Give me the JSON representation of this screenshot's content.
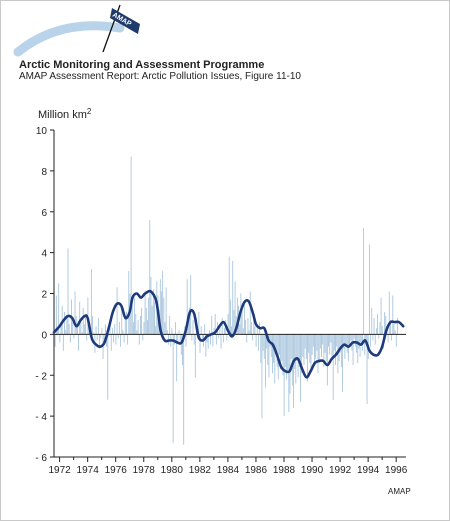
{
  "header": {
    "logo_text": "AMAP",
    "title": "Arctic Monitoring and Assessment Programme",
    "subtitle": "AMAP Assessment Report: Arctic Pollution Issues, Figure 11-10"
  },
  "colors": {
    "bars": "#a9c6dd",
    "smooth_line": "#1d3a7a",
    "axis": "#222222",
    "logo_arc": "#b9d3ea"
  },
  "chart_data": {
    "type": "bar",
    "title": "",
    "ylabel": "Million km²",
    "xlabel": "",
    "ylim": [
      -6,
      10
    ],
    "xlim": [
      1971.6,
      1996.7
    ],
    "yticks": [
      "10",
      "8",
      "6",
      "4",
      "2",
      "0",
      "- 2",
      "- 4",
      "- 6"
    ],
    "ytick_values": [
      10,
      8,
      6,
      4,
      2,
      0,
      -2,
      -4,
      -6
    ],
    "xticks": [
      "1972",
      "1974",
      "1976",
      "1978",
      "1980",
      "1982",
      "1984",
      "1986",
      "1988",
      "1990",
      "1992",
      "1994",
      "1996"
    ],
    "xtick_values": [
      1972,
      1974,
      1976,
      1978,
      1980,
      1982,
      1984,
      1986,
      1988,
      1990,
      1992,
      1994,
      1996
    ],
    "series": [
      {
        "kind": "monthly-anomaly-bars",
        "start_year": 1971.6,
        "step_years": 0.0833,
        "values": [
          0.8,
          -0.6,
          1.9,
          0.3,
          2.5,
          -0.4,
          0.6,
          1.4,
          -0.8,
          1.1,
          0.2,
          0.9,
          4.2,
          0.5,
          -0.4,
          1.7,
          0.6,
          -0.2,
          2.1,
          0.9,
          0.4,
          -0.8,
          1.6,
          0.6,
          0.1,
          1.3,
          0.5,
          0.9,
          -0.3,
          1.8,
          0.6,
          0.4,
          3.2,
          0.9,
          0.1,
          -0.9,
          0.4,
          -0.3,
          0.8,
          -0.7,
          -0.2,
          0.3,
          -1.2,
          -0.3,
          0.5,
          -0.6,
          -3.2,
          -0.1,
          0.4,
          -0.8,
          0.3,
          -0.4,
          0.5,
          -0.5,
          2.3,
          -0.2,
          0.6,
          -0.6,
          1.3,
          0.2,
          -0.4,
          0.8,
          1.1,
          -0.5,
          3.1,
          2.0,
          8.7,
          1.4,
          0.6,
          1.8,
          1.0,
          0.2,
          0.7,
          -0.5,
          0.9,
          1.3,
          -0.3,
          0.6,
          2.1,
          1.3,
          0.7,
          1.8,
          5.6,
          2.8,
          1.4,
          2.2,
          1.6,
          0.4,
          2.6,
          1.9,
          1.2,
          2.7,
          2.1,
          3.1,
          1.8,
          0.6,
          2.3,
          0.2,
          -0.5,
          0.9,
          -0.6,
          0.3,
          -5.3,
          -0.5,
          0.6,
          -2.3,
          -0.4,
          0.2,
          -0.5,
          -1.0,
          -1.5,
          -5.4,
          0.4,
          -0.6,
          2.7,
          0.6,
          1.3,
          2.9,
          -0.3,
          0.7,
          -0.5,
          -2.1,
          0.8,
          -0.2,
          1.1,
          -0.9,
          0.4,
          -0.3,
          -0.6,
          0.5,
          -1.1,
          -0.4,
          -0.7,
          0.2,
          -0.5,
          0.9,
          -0.6,
          0.3,
          1.0,
          -0.5,
          0.6,
          -0.2,
          0.5,
          -0.7,
          0.8,
          -0.4,
          0.3,
          0.7,
          -0.3,
          1.0,
          3.8,
          1.7,
          0.4,
          3.6,
          1.2,
          2.6,
          0.9,
          1.8,
          1.4,
          0.5,
          2.0,
          1.3,
          0.3,
          1.6,
          0.7,
          -0.4,
          0.8,
          0.2,
          2.1,
          0.6,
          -0.3,
          0.7,
          0.4,
          -0.6,
          0.3,
          -0.8,
          0.6,
          -1.4,
          -4.1,
          -0.8,
          -1.2,
          -2.6,
          -0.7,
          -1.5,
          -2.1,
          -0.6,
          -1.1,
          -1.9,
          -1.4,
          -2.4,
          -0.9,
          -1.6,
          -2.2,
          -1.0,
          -1.7,
          -1.3,
          -2.0,
          -4.0,
          -1.6,
          -2.2,
          -1.8,
          -3.8,
          -2.9,
          -1.2,
          -2.5,
          -3.6,
          -1.7,
          -2.4,
          -1.3,
          -2.1,
          -1.6,
          -3.3,
          -1.9,
          -1.1,
          -1.5,
          -0.7,
          -1.2,
          -2.3,
          -0.9,
          -1.4,
          -1.8,
          -1.0,
          -0.6,
          -1.5,
          -1.2,
          -0.8,
          -1.9,
          -1.4,
          -0.7,
          -1.1,
          -0.5,
          -1.6,
          -0.9,
          -1.3,
          -2.5,
          -0.6,
          -1.0,
          -0.4,
          -1.2,
          -3.2,
          -0.8,
          -1.5,
          -0.6,
          -1.9,
          -1.3,
          -0.9,
          -1.6,
          -2.8,
          -0.7,
          -1.2,
          -0.5,
          -0.9,
          -1.3,
          -0.6,
          -0.3,
          -0.8,
          -1.5,
          -0.2,
          -0.6,
          -0.9,
          -1.4,
          -0.7,
          -1.1,
          -0.4,
          -0.8,
          5.2,
          -1.0,
          -0.5,
          -3.4,
          -1.2,
          4.4,
          -0.6,
          1.3,
          -0.3,
          0.8,
          -0.5,
          0.3,
          1.0,
          -0.2,
          0.6,
          1.8,
          0.4,
          -0.7,
          1.1,
          0.9,
          0.3,
          -0.4,
          2.1,
          0.7,
          -0.3,
          1.9,
          0.5,
          0.2,
          -0.6,
          0.8
        ]
      },
      {
        "kind": "smoothed-trend",
        "x": [
          1971.6,
          1972.0,
          1972.3,
          1972.6,
          1972.9,
          1973.2,
          1973.5,
          1973.8,
          1974.0,
          1974.3,
          1974.6,
          1974.9,
          1975.2,
          1975.5,
          1975.8,
          1976.1,
          1976.4,
          1976.7,
          1977.0,
          1977.2,
          1977.5,
          1977.8,
          1978.1,
          1978.5,
          1978.9,
          1979.2,
          1979.5,
          1979.8,
          1980.1,
          1980.4,
          1980.7,
          1981.0,
          1981.3,
          1981.6,
          1981.9,
          1982.2,
          1982.5,
          1982.8,
          1983.1,
          1983.4,
          1983.7,
          1984.0,
          1984.3,
          1984.6,
          1984.9,
          1985.2,
          1985.5,
          1985.8,
          1986.0,
          1986.3,
          1986.6,
          1986.9,
          1987.2,
          1987.5,
          1987.8,
          1988.1,
          1988.4,
          1988.7,
          1989.0,
          1989.3,
          1989.6,
          1989.9,
          1990.2,
          1990.5,
          1990.8,
          1991.1,
          1991.4,
          1991.7,
          1992.0,
          1992.3,
          1992.6,
          1992.9,
          1993.2,
          1993.5,
          1993.8,
          1994.1,
          1994.4,
          1994.7,
          1995.0,
          1995.3,
          1995.6,
          1995.9,
          1996.2,
          1996.5
        ],
        "values": [
          0.1,
          0.4,
          0.7,
          0.9,
          0.8,
          0.4,
          0.7,
          0.9,
          0.8,
          -0.2,
          -0.5,
          -0.6,
          -0.4,
          0.3,
          1.1,
          1.5,
          1.4,
          0.8,
          1.1,
          1.8,
          2.0,
          1.8,
          2.0,
          2.1,
          1.6,
          0.2,
          -0.3,
          -0.3,
          -0.3,
          -0.4,
          -0.4,
          0.2,
          1.1,
          1.0,
          -0.1,
          -0.3,
          -0.1,
          0.0,
          0.1,
          0.4,
          0.6,
          0.2,
          -0.1,
          0.3,
          1.1,
          1.6,
          1.6,
          1.0,
          0.5,
          0.3,
          0.3,
          -0.3,
          -0.5,
          -1.0,
          -1.6,
          -1.8,
          -1.8,
          -1.3,
          -1.2,
          -1.7,
          -2.1,
          -1.8,
          -1.4,
          -1.3,
          -1.3,
          -1.5,
          -1.2,
          -1.0,
          -0.7,
          -0.5,
          -0.6,
          -0.4,
          -0.4,
          -0.5,
          -0.3,
          -0.8,
          -1.0,
          -1.0,
          -0.6,
          0.2,
          0.6,
          0.6,
          0.6,
          0.4
        ]
      }
    ],
    "credit": "AMAP"
  }
}
